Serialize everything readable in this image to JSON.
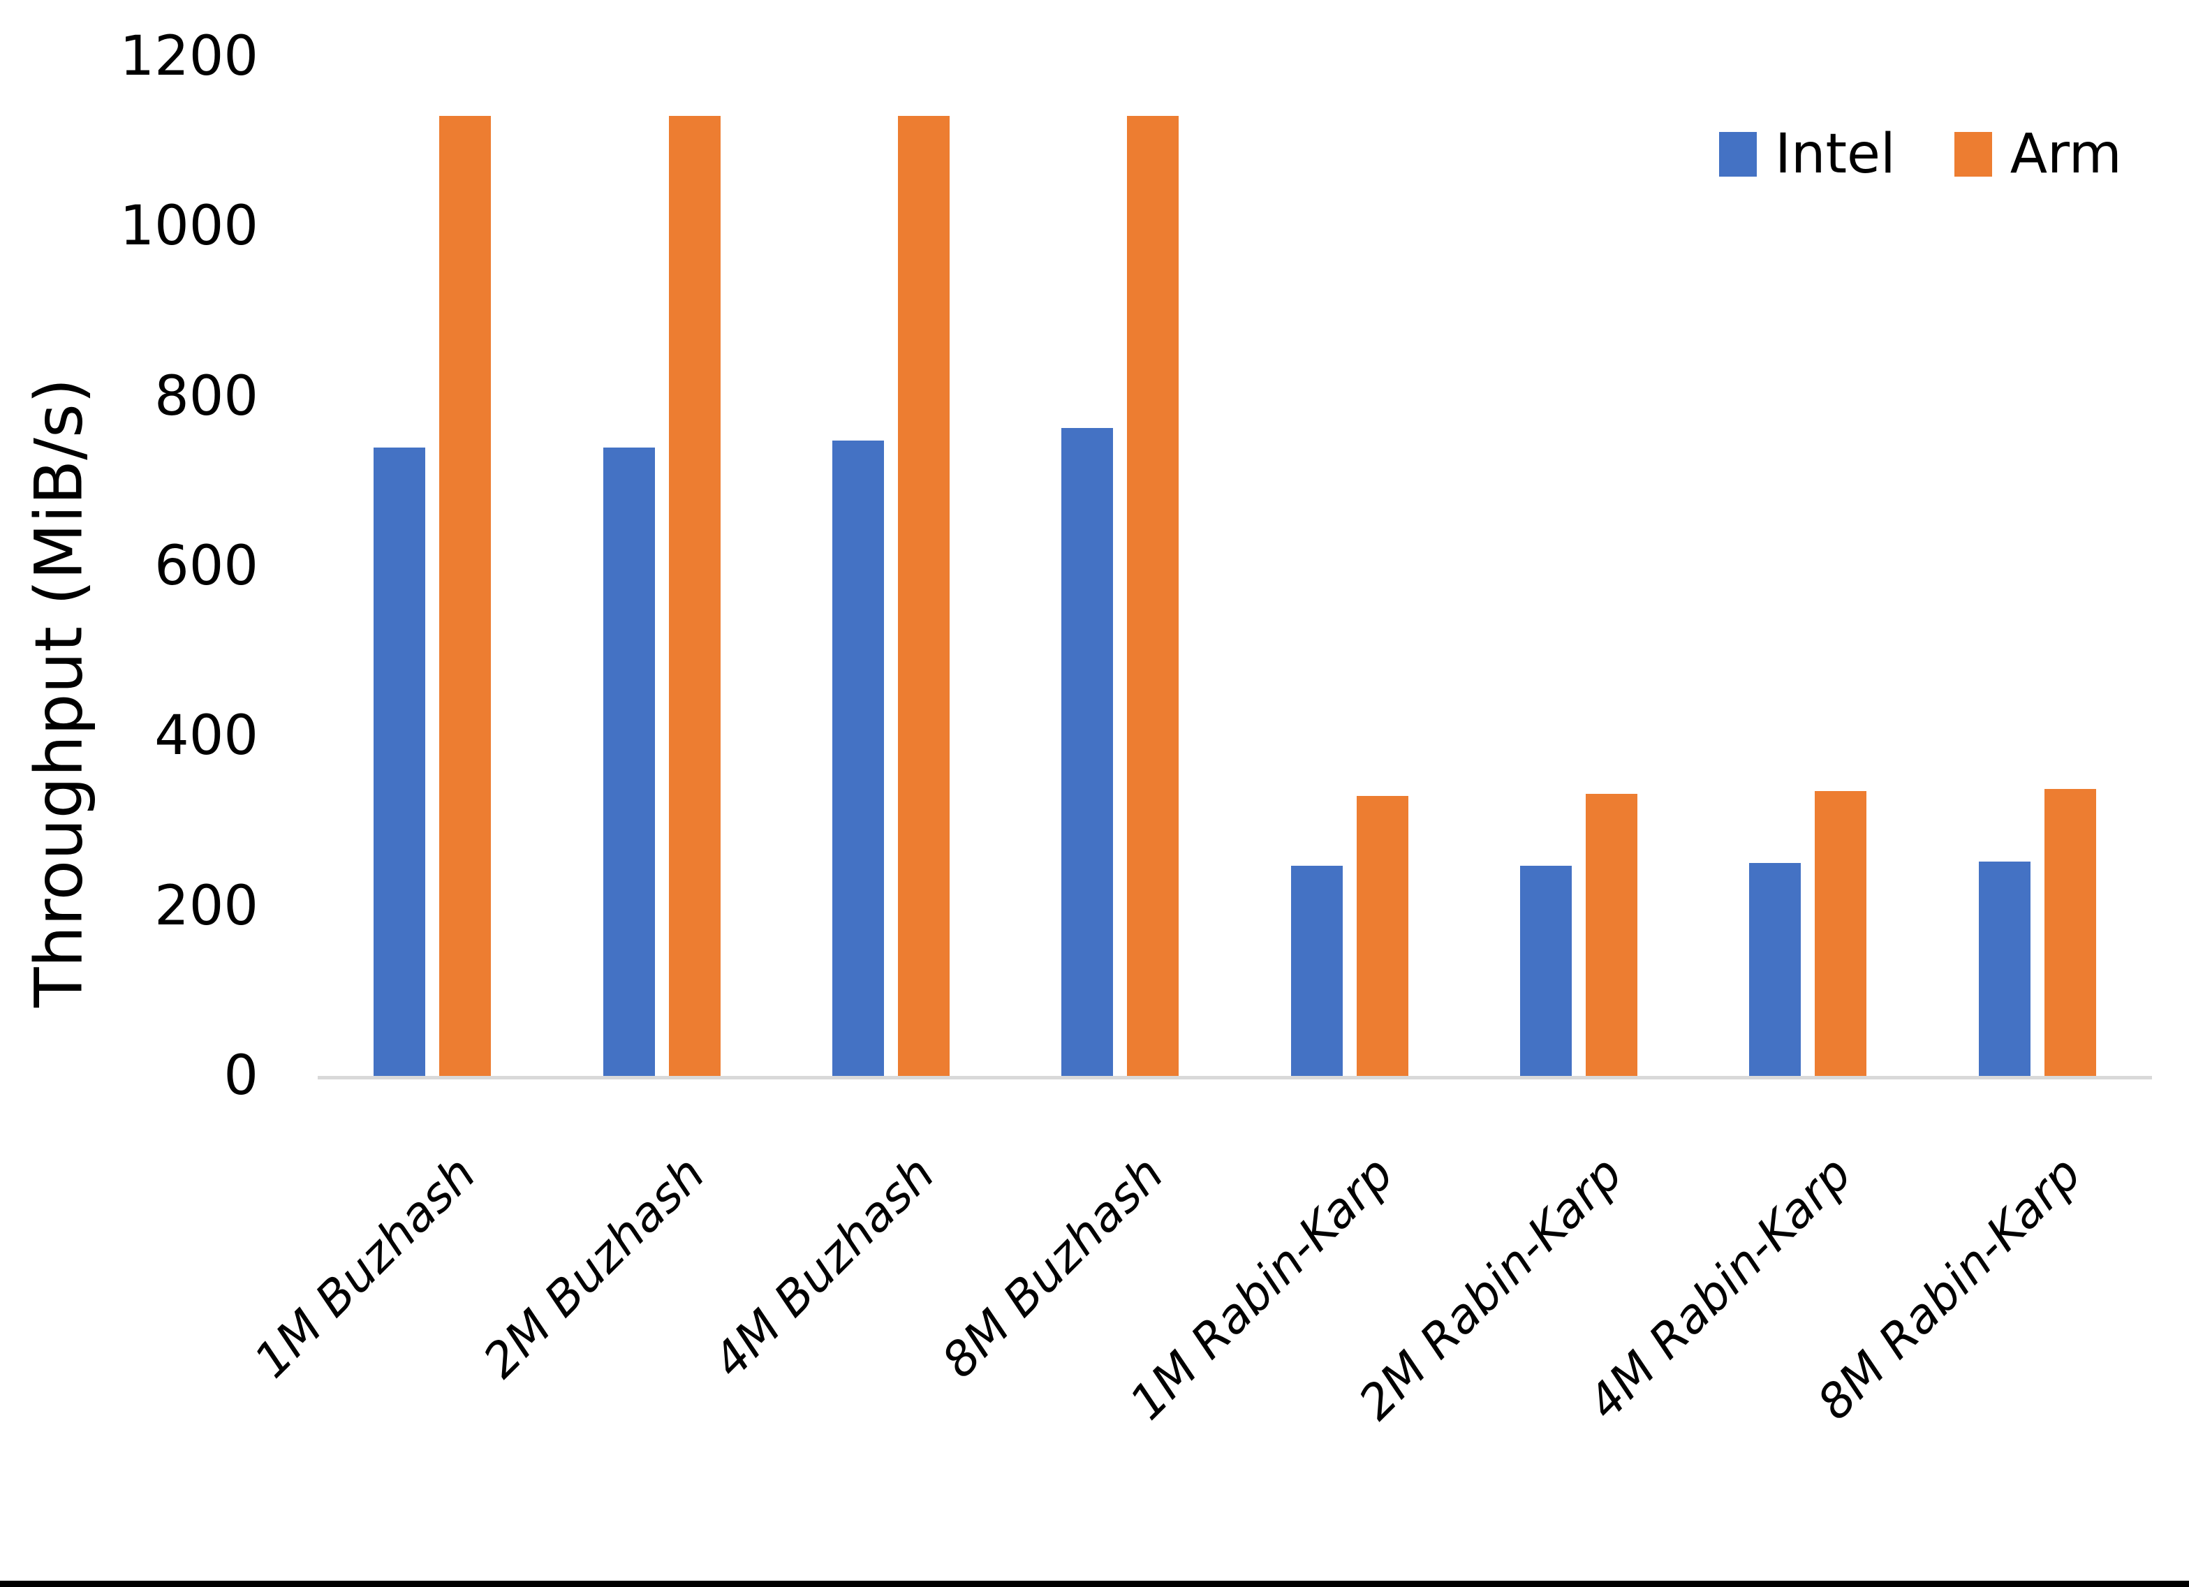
{
  "chart_data": {
    "type": "bar",
    "title": "",
    "xlabel": "",
    "ylabel": "Throughput (MiB/s)",
    "ylim": [
      0,
      1200
    ],
    "yticks": [
      0,
      200,
      400,
      600,
      800,
      1000,
      1200
    ],
    "grid": false,
    "legend_position": "top-right",
    "categories": [
      "1M Buzhash",
      "2M Buzhash",
      "4M Buzhash",
      "8M Buzhash",
      "1M Rabin-Karp",
      "2M Rabin-Karp",
      "4M Rabin-Karp",
      "8M Rabin-Karp"
    ],
    "series": [
      {
        "name": "Intel",
        "color": "#4472C4",
        "values": [
          740,
          740,
          748,
          763,
          247,
          247,
          251,
          252
        ]
      },
      {
        "name": "Arm",
        "color": "#ED7D31",
        "values": [
          1130,
          1130,
          1130,
          1130,
          330,
          332,
          335,
          338
        ]
      }
    ]
  },
  "style": {
    "background": "#FFFFFF",
    "axis_line_color": "#D9D9D9",
    "text_color": "#000000",
    "bottom_edge_color": "#000000"
  }
}
